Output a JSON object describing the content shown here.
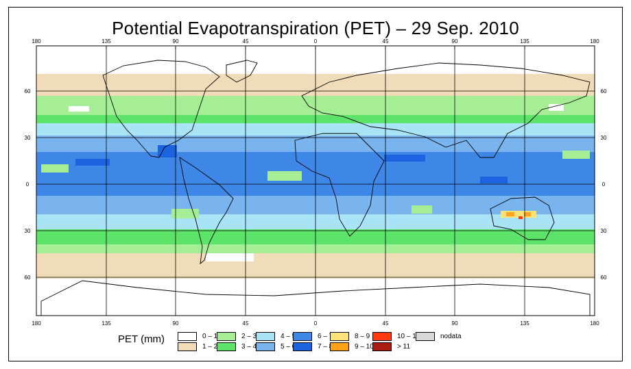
{
  "title": "Potential Evapotranspiration (PET) – 29 Sep. 2010",
  "map": {
    "longitude_ticks": [
      "180",
      "135",
      "90",
      "45",
      "0",
      "45",
      "90",
      "135",
      "180"
    ],
    "latitude_ticks": [
      "60",
      "30",
      "0",
      "30",
      "60"
    ],
    "legend_title": "PET (mm)",
    "legend": [
      {
        "label": "0 – 1",
        "color": "#ffffff"
      },
      {
        "label": "1 – 2",
        "color": "#f0dcb8"
      },
      {
        "label": "2 – 3",
        "color": "#a6ee96"
      },
      {
        "label": "3 – 4",
        "color": "#5de26a"
      },
      {
        "label": "4 – 5",
        "color": "#a8e4f6"
      },
      {
        "label": "5 – 6",
        "color": "#79b4ef"
      },
      {
        "label": "6 – 7",
        "color": "#3f87e6"
      },
      {
        "label": "7 – 8",
        "color": "#1c63e0"
      },
      {
        "label": "8 – 9",
        "color": "#fde27a"
      },
      {
        "label": "9 – 10",
        "color": "#ffa21a"
      },
      {
        "label": "10 – 11",
        "color": "#ff3a10"
      },
      {
        "label": "> 11",
        "color": "#a81c12"
      },
      {
        "label": "nodata",
        "color": "#d8d8d8"
      }
    ]
  }
}
